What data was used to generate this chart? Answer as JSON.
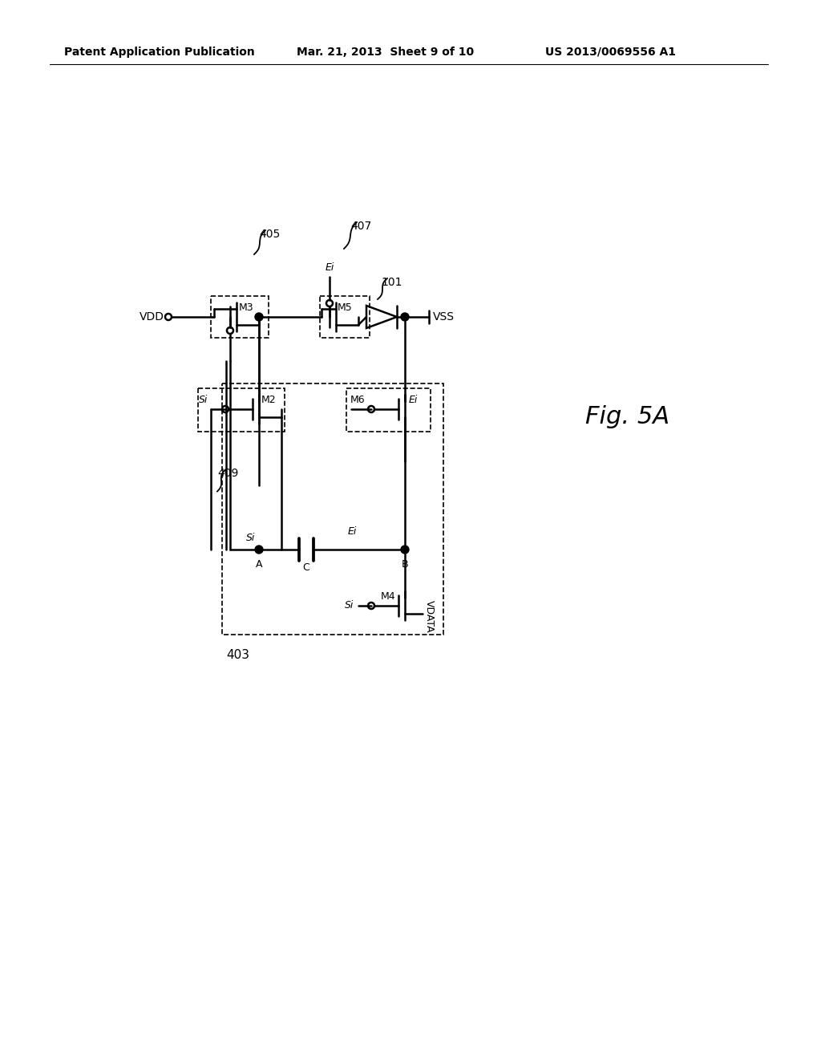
{
  "header_left": "Patent Application Publication",
  "header_center": "Mar. 21, 2013  Sheet 9 of 10",
  "header_right": "US 2013/0069556 A1",
  "bg_color": "#ffffff",
  "fig_label": "Fig. 5A",
  "label_403": "403",
  "label_405": "405",
  "label_407": "407",
  "label_409": "409",
  "label_101": "101"
}
